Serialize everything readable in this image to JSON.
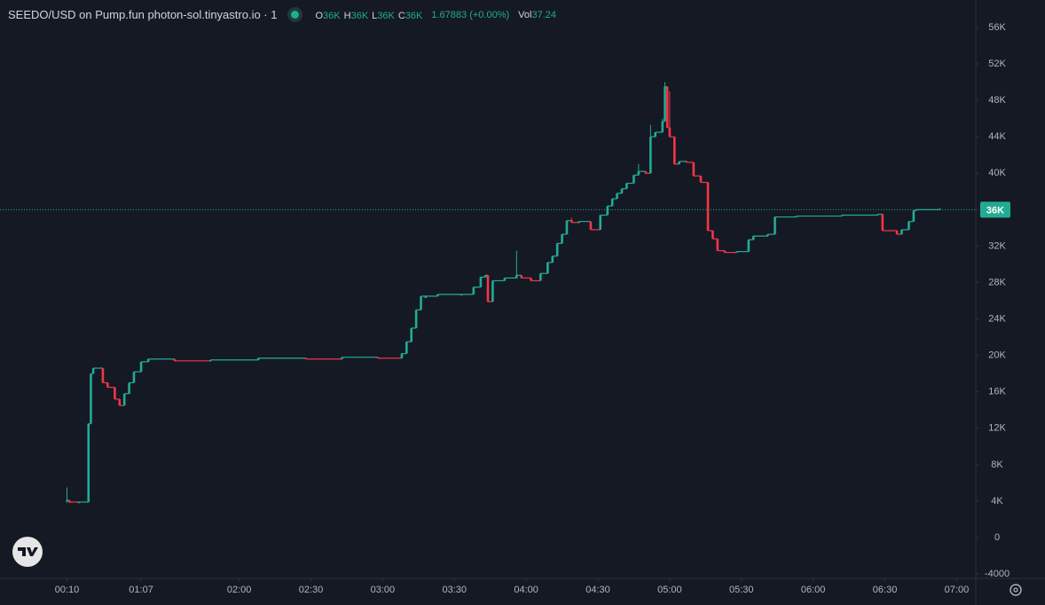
{
  "chart_data": {
    "type": "candlestick",
    "symbol": "SEEDO/USD on Pump.fun photon-sol.tinyastro.io · 1",
    "ohlc_legend": [
      {
        "label": "O",
        "value": "36K"
      },
      {
        "label": "H",
        "value": "36K"
      },
      {
        "label": "L",
        "value": "36K"
      },
      {
        "label": "C",
        "value": "36K"
      }
    ],
    "change": "1.67883 (+0.00%)",
    "volume_label": "Vol",
    "volume": "37.24",
    "up_color": "#22ab94",
    "down_color": "#f23645",
    "last_price": {
      "value": 36000,
      "label": "36K"
    },
    "xlim": [
      -18,
      390
    ],
    "xticks": [
      {
        "value": 10,
        "label": "00:10"
      },
      {
        "value": 41,
        "label": "01:07"
      },
      {
        "value": 82,
        "label": "02:00"
      },
      {
        "value": 112,
        "label": "02:30"
      },
      {
        "value": 142,
        "label": "03:00"
      },
      {
        "value": 172,
        "label": "03:30"
      },
      {
        "value": 202,
        "label": "04:00"
      },
      {
        "value": 232,
        "label": "04:30"
      },
      {
        "value": 262,
        "label": "05:00"
      },
      {
        "value": 292,
        "label": "05:30"
      },
      {
        "value": 322,
        "label": "06:00"
      },
      {
        "value": 352,
        "label": "06:30"
      },
      {
        "value": 382,
        "label": "07:00"
      }
    ],
    "ylim": [
      -4480,
      59020
    ],
    "yticks": [
      {
        "value": -4000,
        "label": "-4000"
      },
      0,
      {
        "value": 4000,
        "label": "4K"
      },
      {
        "value": 8000,
        "label": "8K"
      },
      {
        "value": 12000,
        "label": "12K"
      },
      {
        "value": 16000,
        "label": "16K"
      },
      {
        "value": 20000,
        "label": "20K"
      },
      {
        "value": 24000,
        "label": "24K"
      },
      {
        "value": 28000,
        "label": "28K"
      },
      {
        "value": 32000,
        "label": "32K"
      },
      {
        "value": 36000,
        "label": "36K"
      },
      {
        "value": 40000,
        "label": "40K"
      },
      {
        "value": 44000,
        "label": "44K"
      },
      {
        "value": 48000,
        "label": "48K"
      },
      {
        "value": 52000,
        "label": "52K"
      },
      {
        "value": 56000,
        "label": "56K"
      }
    ],
    "candles": {
      "x": [
        10,
        11,
        15,
        19,
        20,
        21,
        25,
        27,
        30,
        32,
        34,
        36,
        38,
        41,
        44,
        55,
        70,
        90,
        110,
        125,
        140,
        150,
        152,
        154,
        156,
        158,
        160,
        165,
        175,
        180,
        183,
        185,
        186,
        188,
        193,
        198,
        200,
        204,
        208,
        211,
        213,
        215,
        217,
        219,
        221,
        224,
        229,
        233,
        236,
        238,
        240,
        242,
        244,
        247,
        249,
        252,
        254,
        256,
        259,
        260,
        261,
        262,
        264,
        266,
        269,
        272,
        275,
        278,
        280,
        282,
        285,
        290,
        295,
        297,
        303,
        306,
        315,
        334,
        349,
        351,
        357,
        359,
        362,
        364,
        365,
        375
      ],
      "open": [
        4000,
        4100,
        3900,
        3900,
        12500,
        18000,
        18600,
        17000,
        16500,
        15200,
        14500,
        15800,
        17000,
        18200,
        19300,
        19600,
        19400,
        19500,
        19700,
        19600,
        19800,
        19700,
        20200,
        21500,
        23000,
        25000,
        26300,
        26500,
        26700,
        26700,
        27500,
        28600,
        28800,
        25900,
        28200,
        28500,
        28800,
        28500,
        28200,
        29000,
        30200,
        30900,
        32300,
        33300,
        34800,
        34600,
        34700,
        33800,
        35400,
        36400,
        37200,
        37800,
        38300,
        38900,
        39800,
        40200,
        40000,
        44000,
        44500,
        45700,
        49500,
        45000,
        44000,
        41000,
        41300,
        41200,
        39700,
        39000,
        33700,
        32800,
        31500,
        31300,
        31400,
        32700,
        33100,
        33300,
        35200,
        35300,
        35400,
        35500,
        33700,
        33300,
        33800,
        34700,
        35900,
        36000
      ],
      "high": [
        5500,
        4100,
        3950,
        12500,
        18000,
        18600,
        18600,
        17000,
        16500,
        15200,
        15800,
        17000,
        18200,
        19300,
        19600,
        19600,
        19500,
        19700,
        19700,
        19800,
        19800,
        20200,
        21500,
        23000,
        25000,
        26500,
        26600,
        26700,
        26700,
        27500,
        28600,
        28800,
        28800,
        28200,
        28500,
        31500,
        28800,
        28500,
        29000,
        30200,
        30900,
        32300,
        33300,
        34800,
        35100,
        34700,
        34700,
        35400,
        36400,
        37200,
        37800,
        38300,
        38900,
        39800,
        41000,
        40200,
        45300,
        44500,
        46000,
        50000,
        49500,
        49000,
        44000,
        41300,
        41400,
        41200,
        39700,
        39000,
        33700,
        32800,
        31500,
        31400,
        32700,
        33100,
        33300,
        35200,
        35300,
        35400,
        35500,
        35500,
        33700,
        33800,
        34700,
        35900,
        36000,
        36100
      ],
      "low": [
        3800,
        3800,
        3850,
        3900,
        12500,
        18000,
        17000,
        16500,
        15200,
        14500,
        14500,
        15800,
        17000,
        18200,
        19300,
        19400,
        19300,
        19500,
        19600,
        19600,
        19700,
        19700,
        20200,
        21500,
        23000,
        25000,
        26300,
        26500,
        26600,
        26700,
        27500,
        28600,
        25900,
        25900,
        28200,
        28500,
        28500,
        28200,
        28200,
        29000,
        30200,
        30900,
        32300,
        33300,
        34600,
        34500,
        33800,
        33800,
        35400,
        36400,
        37200,
        37800,
        38300,
        38900,
        39800,
        39900,
        40000,
        44000,
        44500,
        45700,
        45000,
        44000,
        41000,
        41000,
        41200,
        39700,
        39000,
        33700,
        32800,
        31500,
        31300,
        31300,
        31400,
        32700,
        33100,
        33300,
        35200,
        35300,
        35400,
        33700,
        33300,
        33300,
        33800,
        34700,
        35900,
        36000
      ],
      "close": [
        4100,
        3900,
        3900,
        12500,
        18000,
        18600,
        17000,
        16500,
        15200,
        14500,
        15800,
        17000,
        18200,
        19300,
        19600,
        19400,
        19500,
        19700,
        19600,
        19800,
        19700,
        20200,
        21500,
        23000,
        25000,
        26500,
        26500,
        26700,
        26700,
        27500,
        28600,
        28800,
        25900,
        28200,
        28500,
        28800,
        28500,
        28200,
        29000,
        30200,
        30900,
        32300,
        33300,
        34800,
        34600,
        34700,
        33800,
        35400,
        36400,
        37200,
        37800,
        38300,
        38900,
        39800,
        40200,
        40000,
        44000,
        44500,
        45700,
        49500,
        45000,
        44000,
        41000,
        41300,
        41200,
        39700,
        39000,
        33700,
        32800,
        31500,
        31300,
        31400,
        32700,
        33100,
        33300,
        35200,
        35300,
        35400,
        35500,
        33700,
        33300,
        33800,
        34700,
        35900,
        36000,
        36100
      ]
    }
  }
}
